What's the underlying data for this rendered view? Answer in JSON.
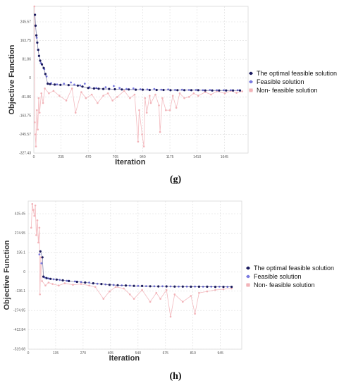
{
  "chart_data": [
    {
      "type": "scatter",
      "caption": "(g)",
      "xlabel": "Iteration",
      "ylabel": "Objective Function",
      "xlim": [
        0,
        1850
      ],
      "ylim": [
        -327.43,
        280
      ],
      "xticks": [
        "0",
        "235",
        "470",
        "705",
        "940",
        "1175",
        "1410",
        "1645"
      ],
      "yticks": [
        "245.57",
        "163.75",
        "81.86",
        "0",
        "-81.86",
        "-163.75",
        "-245.57",
        "-327.43"
      ],
      "grid": true,
      "legend_position": "right",
      "series": [
        {
          "name": "The optimal feasible solution",
          "color": "#1a1a5e",
          "points": [
            [
              10,
              245
            ],
            [
              15,
              200
            ],
            [
              22,
              160
            ],
            [
              30,
              130
            ],
            [
              38,
              100
            ],
            [
              45,
              75
            ],
            [
              55,
              55
            ],
            [
              70,
              40
            ],
            [
              85,
              25
            ],
            [
              100,
              0
            ],
            [
              120,
              -40
            ],
            [
              140,
              -42
            ],
            [
              180,
              -44
            ],
            [
              230,
              -45
            ],
            [
              300,
              -46
            ],
            [
              380,
              -48
            ],
            [
              420,
              -52
            ],
            [
              470,
              -58
            ],
            [
              520,
              -60
            ],
            [
              560,
              -61
            ],
            [
              600,
              -62
            ],
            [
              650,
              -62
            ],
            [
              700,
              -63
            ],
            [
              760,
              -64
            ],
            [
              820,
              -64
            ],
            [
              880,
              -65
            ],
            [
              940,
              -65
            ],
            [
              1000,
              -66
            ],
            [
              1060,
              -66
            ],
            [
              1120,
              -66
            ],
            [
              1180,
              -67
            ],
            [
              1240,
              -67
            ],
            [
              1300,
              -67
            ],
            [
              1360,
              -67
            ],
            [
              1420,
              -67
            ],
            [
              1480,
              -68
            ],
            [
              1540,
              -68
            ],
            [
              1600,
              -68
            ],
            [
              1660,
              -68
            ],
            [
              1720,
              -68
            ],
            [
              1780,
              -68
            ]
          ]
        },
        {
          "name": "Feasible solution",
          "color": "#7a7ae0",
          "points": [
            [
              25,
              150
            ],
            [
              60,
              45
            ],
            [
              90,
              20
            ],
            [
              110,
              -10
            ],
            [
              150,
              -38
            ],
            [
              200,
              -43
            ],
            [
              260,
              -40
            ],
            [
              320,
              -35
            ],
            [
              350,
              -44
            ],
            [
              400,
              -47
            ],
            [
              440,
              -40
            ],
            [
              480,
              -55
            ],
            [
              540,
              -58
            ],
            [
              620,
              -55
            ],
            [
              690,
              -50
            ],
            [
              740,
              -58
            ],
            [
              800,
              -62
            ],
            [
              860,
              -60
            ],
            [
              920,
              -63
            ],
            [
              980,
              -64
            ],
            [
              1040,
              -62
            ],
            [
              1100,
              -65
            ],
            [
              1160,
              -64
            ],
            [
              1220,
              -66
            ],
            [
              1280,
              -65
            ],
            [
              1340,
              -66
            ],
            [
              1400,
              -66
            ],
            [
              1460,
              -67
            ],
            [
              1520,
              -66
            ],
            [
              1580,
              -67
            ],
            [
              1640,
              -67
            ],
            [
              1700,
              -67
            ],
            [
              1760,
              -67
            ]
          ]
        },
        {
          "name": "Non- feasible solution",
          "color": "#f2b3b8",
          "points": [
            [
              5,
              280
            ],
            [
              8,
              -200
            ],
            [
              12,
              -250
            ],
            [
              18,
              -300
            ],
            [
              26,
              -150
            ],
            [
              34,
              -230
            ],
            [
              42,
              -100
            ],
            [
              50,
              -160
            ],
            [
              65,
              -80
            ],
            [
              80,
              -120
            ],
            [
              95,
              -60
            ],
            [
              130,
              -80
            ],
            [
              170,
              -70
            ],
            [
              220,
              -90
            ],
            [
              280,
              -110
            ],
            [
              330,
              -60
            ],
            [
              360,
              -160
            ],
            [
              410,
              -75
            ],
            [
              450,
              -100
            ],
            [
              500,
              -85
            ],
            [
              550,
              -120
            ],
            [
              600,
              -90
            ],
            [
              640,
              -80
            ],
            [
              680,
              -110
            ],
            [
              720,
              -95
            ],
            [
              780,
              -70
            ],
            [
              830,
              -100
            ],
            [
              870,
              -85
            ],
            [
              900,
              -280
            ],
            [
              910,
              -150
            ],
            [
              935,
              -250
            ],
            [
              950,
              -300
            ],
            [
              960,
              -100
            ],
            [
              975,
              -160
            ],
            [
              1000,
              -90
            ],
            [
              1010,
              -120
            ],
            [
              1050,
              -85
            ],
            [
              1080,
              -130
            ],
            [
              1090,
              -240
            ],
            [
              1110,
              -100
            ],
            [
              1140,
              -150
            ],
            [
              1175,
              -150
            ],
            [
              1200,
              -90
            ],
            [
              1230,
              -140
            ],
            [
              1260,
              -80
            ],
            [
              1300,
              -100
            ],
            [
              1340,
              -95
            ],
            [
              1380,
              -80
            ],
            [
              1420,
              -90
            ],
            [
              1480,
              -75
            ],
            [
              1530,
              -85
            ],
            [
              1580,
              -72
            ],
            [
              1650,
              -80
            ],
            [
              1700,
              -70
            ],
            [
              1750,
              -78
            ],
            [
              1800,
              -72
            ]
          ]
        }
      ]
    },
    {
      "type": "scatter",
      "caption": "(h)",
      "xlabel": "Iteration",
      "ylabel": "Objective Function",
      "xlim": [
        0,
        1050
      ],
      "ylim": [
        -519.68,
        480
      ],
      "xticks": [
        "0",
        "135",
        "270",
        "405",
        "540",
        "675",
        "810",
        "945"
      ],
      "yticks": [
        "415.45",
        "274.95",
        "136.1",
        "0",
        "-136.1",
        "-274.95",
        "-412.84",
        "-519.68"
      ],
      "grid": true,
      "legend_position": "right",
      "series": [
        {
          "name": "The optimal feasible solution",
          "color": "#1a1a5e",
          "points": [
            [
              60,
              140
            ],
            [
              70,
              100
            ],
            [
              75,
              -30
            ],
            [
              90,
              -40
            ],
            [
              110,
              -45
            ],
            [
              140,
              -50
            ],
            [
              170,
              -55
            ],
            [
              200,
              -60
            ],
            [
              240,
              -65
            ],
            [
              280,
              -70
            ],
            [
              320,
              -75
            ],
            [
              360,
              -80
            ],
            [
              400,
              -85
            ],
            [
              440,
              -88
            ],
            [
              480,
              -90
            ],
            [
              520,
              -92
            ],
            [
              560,
              -93
            ],
            [
              600,
              -95
            ],
            [
              640,
              -96
            ],
            [
              680,
              -96
            ],
            [
              720,
              -97
            ],
            [
              760,
              -97
            ],
            [
              800,
              -98
            ],
            [
              840,
              -98
            ],
            [
              880,
              -98
            ],
            [
              920,
              -99
            ],
            [
              960,
              -99
            ],
            [
              1000,
              -99
            ]
          ]
        },
        {
          "name": "Feasible solution",
          "color": "#7a7ae0",
          "points": [
            [
              55,
              120
            ],
            [
              65,
              60
            ],
            [
              80,
              -35
            ],
            [
              100,
              -42
            ],
            [
              125,
              -48
            ],
            [
              155,
              -52
            ],
            [
              190,
              -58
            ],
            [
              230,
              -62
            ],
            [
              260,
              -66
            ],
            [
              300,
              -70
            ],
            [
              340,
              -78
            ],
            [
              380,
              -82
            ],
            [
              420,
              -86
            ],
            [
              460,
              -89
            ],
            [
              500,
              -91
            ],
            [
              540,
              -92
            ],
            [
              580,
              -94
            ],
            [
              620,
              -95
            ],
            [
              660,
              -95
            ],
            [
              700,
              -96
            ],
            [
              740,
              -97
            ],
            [
              780,
              -97
            ],
            [
              820,
              -97
            ],
            [
              860,
              -98
            ],
            [
              900,
              -98
            ],
            [
              940,
              -98
            ],
            [
              980,
              -99
            ]
          ]
        },
        {
          "name": "Non- feasible solution",
          "color": "#f2b3b8",
          "points": [
            [
              15,
              300
            ],
            [
              20,
              460
            ],
            [
              25,
              420
            ],
            [
              30,
              380
            ],
            [
              35,
              450
            ],
            [
              40,
              250
            ],
            [
              45,
              350
            ],
            [
              50,
              200
            ],
            [
              55,
              300
            ],
            [
              58,
              -150
            ],
            [
              62,
              100
            ],
            [
              68,
              -60
            ],
            [
              85,
              -90
            ],
            [
              100,
              -70
            ],
            [
              120,
              -80
            ],
            [
              150,
              -90
            ],
            [
              180,
              -75
            ],
            [
              220,
              -85
            ],
            [
              260,
              -80
            ],
            [
              300,
              -90
            ],
            [
              330,
              -100
            ],
            [
              370,
              -180
            ],
            [
              400,
              -130
            ],
            [
              430,
              -100
            ],
            [
              470,
              -110
            ],
            [
              500,
              -150
            ],
            [
              520,
              -180
            ],
            [
              560,
              -120
            ],
            [
              600,
              -200
            ],
            [
              630,
              -140
            ],
            [
              650,
              -180
            ],
            [
              680,
              -120
            ],
            [
              700,
              -300
            ],
            [
              720,
              -150
            ],
            [
              760,
              -200
            ],
            [
              800,
              -160
            ],
            [
              820,
              -280
            ],
            [
              840,
              -140
            ],
            [
              880,
              -130
            ],
            [
              920,
              -120
            ],
            [
              960,
              -115
            ],
            [
              1000,
              -110
            ]
          ]
        }
      ]
    }
  ]
}
